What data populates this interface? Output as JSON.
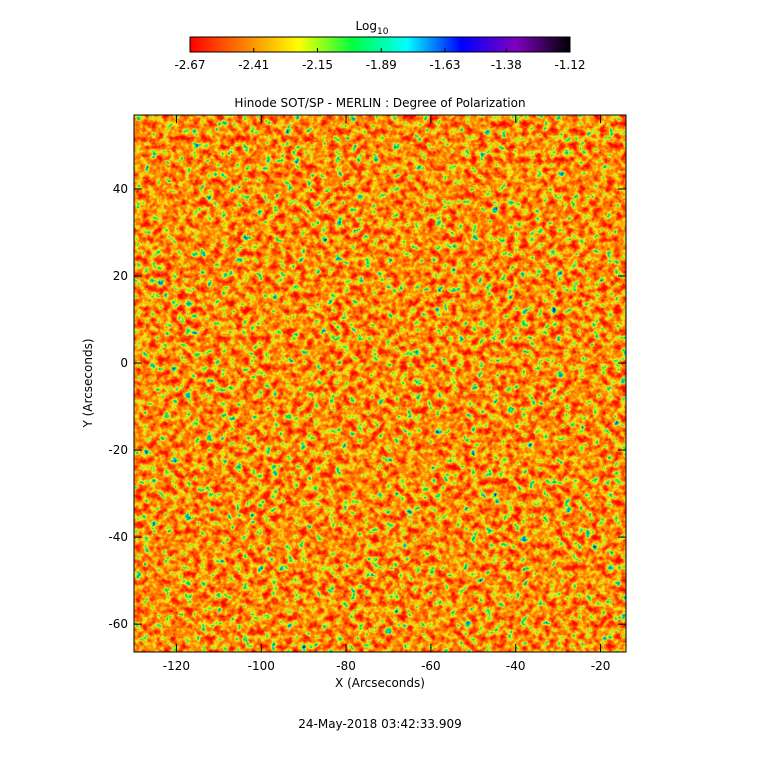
{
  "chart_data": {
    "type": "image",
    "title": "Hinode SOT/SP - MERLIN : Degree of Polarization",
    "x_label": "X (Arcseconds)",
    "y_label": "Y (Arcseconds)",
    "xlim": [
      -130,
      -14
    ],
    "ylim": [
      -66.4,
      57
    ],
    "xticks": [
      -120,
      -100,
      -80,
      -60,
      -40,
      -20
    ],
    "yticks": [
      -60,
      -40,
      -20,
      0,
      20,
      40
    ],
    "colorbar": {
      "label": "Log",
      "label_subscript": "10",
      "lim": [
        -2.67,
        -1.12
      ],
      "ticks": [
        -2.67,
        -2.41,
        -2.15,
        -1.89,
        -1.63,
        -1.38,
        -1.12
      ],
      "colors": [
        "#ff0000",
        "#ff8000",
        "#ffff00",
        "#00ff40",
        "#00ffff",
        "#0000ff",
        "#8000c0",
        "#000000"
      ]
    },
    "footer": "24-May-2018 03:42:33.909"
  }
}
